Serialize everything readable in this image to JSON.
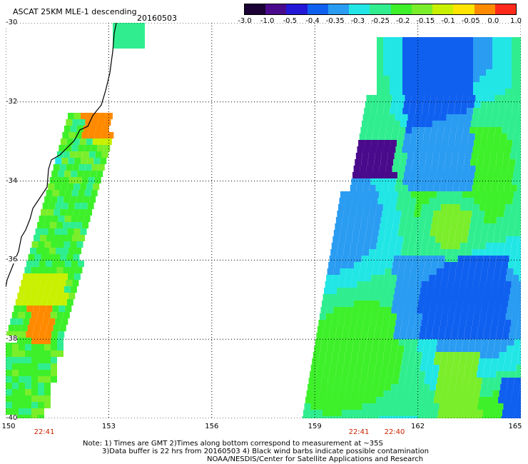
{
  "header": {
    "title": "ASCAT 25KM MLE-1 descending",
    "date": "20160503"
  },
  "colorbar": {
    "labels": [
      "-3.0",
      "-1.0",
      "-0.5",
      "-0.4",
      "-0.35",
      "-0.3",
      "-0.25",
      "-0.2",
      "-0.15",
      "-0.1",
      "-0.05",
      "0.0",
      "1.0"
    ],
    "colors": [
      "#1a0033",
      "#4a0a8c",
      "#2218d6",
      "#1060f0",
      "#2a9cf2",
      "#22e6e6",
      "#30ee90",
      "#3ef02a",
      "#7aee2a",
      "#c8f000",
      "#ffe400",
      "#ff8a00",
      "#ff2a1a"
    ]
  },
  "axes": {
    "lat_labels": [
      "-30",
      "-32",
      "-34",
      "-36",
      "-38",
      "-40"
    ],
    "lon_labels": [
      "150",
      "153",
      "156",
      "159",
      "162",
      "165"
    ]
  },
  "swath_times": [
    "22:41",
    "22:41",
    "22:40"
  ],
  "notes": [
    "Note: 1) Times are GMT 2)Times along bottom correspond to measurement at ~35S",
    "3)Data buffer is 22 hrs from 20160503 4) Black wind barbs indicate possible contamination",
    "NOAA/NESDIS/Center for Satellite Applications and Research"
  ],
  "legend_colors": {
    "land": "#ffffff",
    "coast": "#000000",
    "grid": "#000000"
  }
}
